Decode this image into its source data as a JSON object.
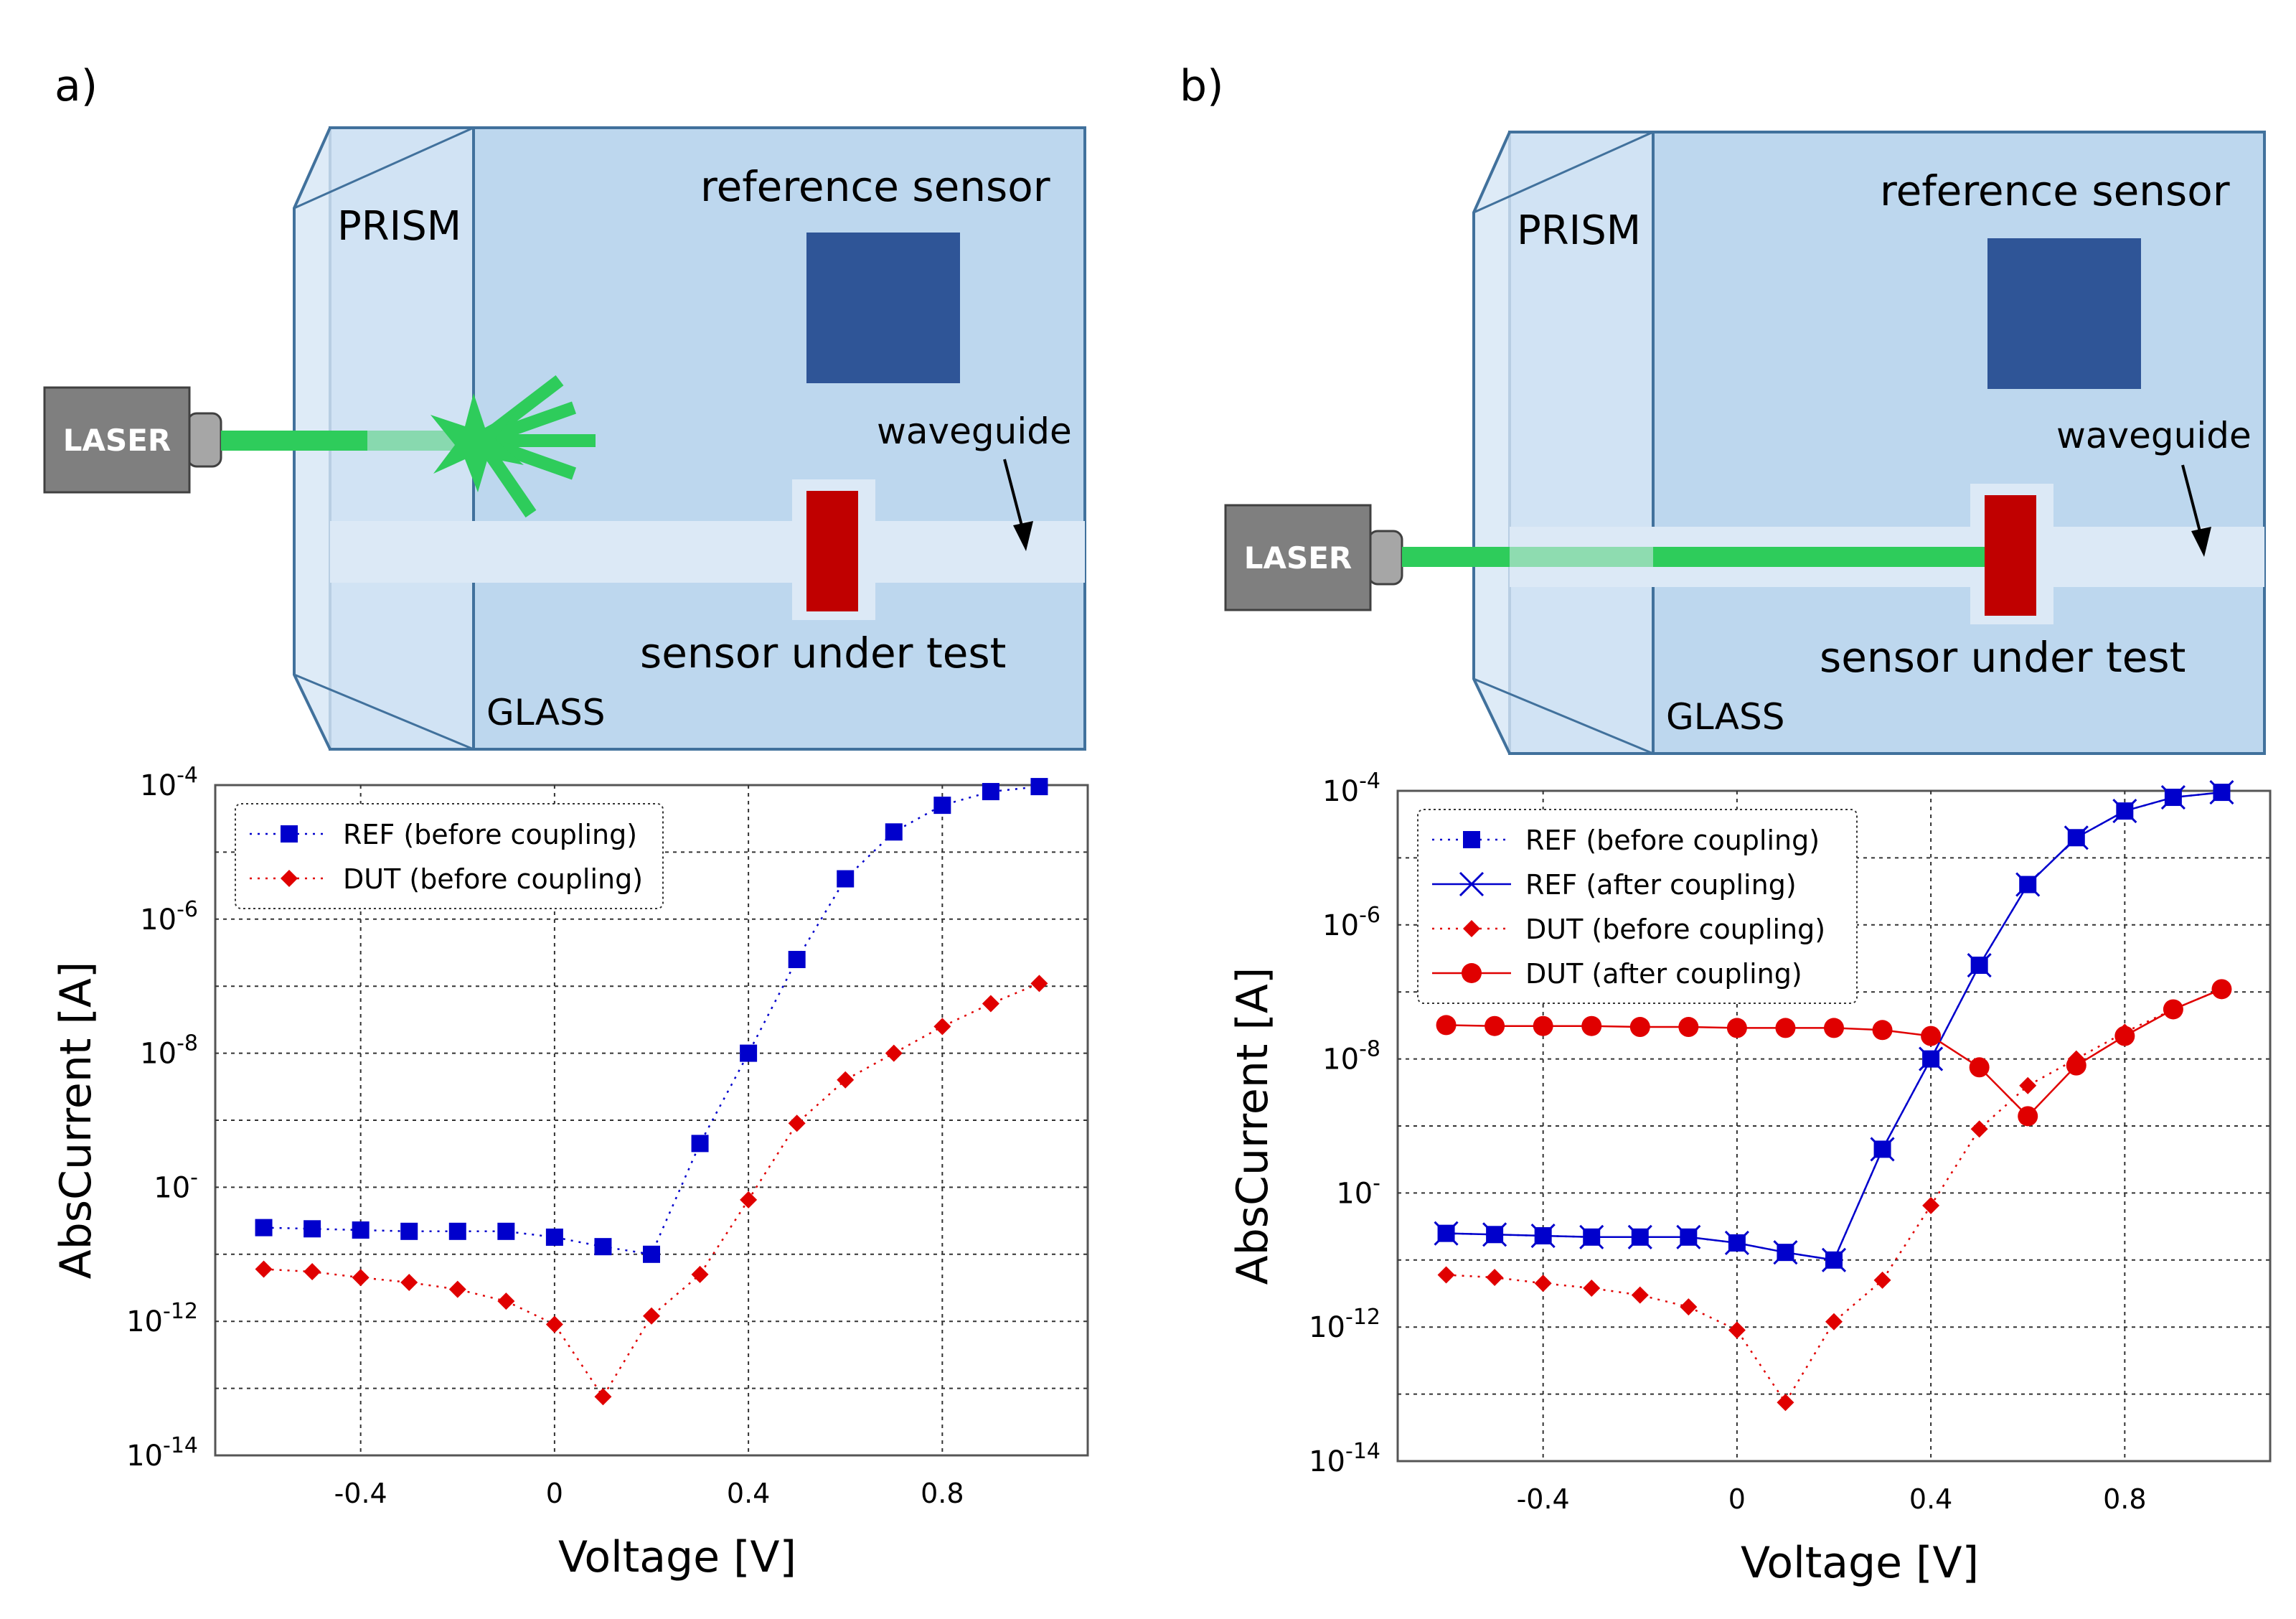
{
  "panel_a": {
    "label": "a)",
    "diagram": {
      "laser": "LASER",
      "prism": "PRISM",
      "glass": "GLASS",
      "reference_sensor": "reference sensor",
      "waveguide": "waveguide",
      "sensor_under_test": "sensor under test"
    }
  },
  "panel_b": {
    "label": "b)",
    "diagram": {
      "laser": "LASER",
      "prism": "PRISM",
      "glass": "GLASS",
      "reference_sensor": "reference sensor",
      "waveguide": "waveguide",
      "sensor_under_test": "sensor under test"
    }
  },
  "colors": {
    "glass": "#bdd7ee",
    "glass_border": "#41719c",
    "prism": "#d6e6f5",
    "waveguide": "#dce9f6",
    "reference_sensor": "#2f5597",
    "sensor_under_test": "#c00000",
    "laser_body": "#7f7f7f",
    "beam": "#2ecc5b",
    "ref_series": "#0000cc",
    "dut_series": "#e00000"
  },
  "chart_data": [
    {
      "type": "scatter",
      "panel": "a",
      "xlabel": "Voltage [V]",
      "ylabel": "AbsCurrent [A]",
      "xlim": [
        -0.7,
        1.1
      ],
      "ylim": [
        1e-14,
        0.0001
      ],
      "yscale": "log",
      "grid": true,
      "legend_position": "top-left",
      "x_ticks": [
        -0.4,
        0,
        0.4,
        0.8
      ],
      "x_tick_labels": [
        "-0.4",
        "0",
        "0.4",
        "0.8"
      ],
      "y_ticks": [
        1e-14,
        1e-12,
        1e-10,
        1e-08,
        1e-06,
        0.0001
      ],
      "y_tick_labels": [
        "10-14",
        "10-12",
        "10-10",
        "10-8",
        "10-6",
        "10-4"
      ],
      "series": [
        {
          "name": "REF (before coupling)",
          "marker": "square",
          "line": "dotted",
          "color": "#0000cc",
          "x": [
            -0.6,
            -0.5,
            -0.4,
            -0.3,
            -0.2,
            -0.1,
            0.0,
            0.1,
            0.2,
            0.3,
            0.4,
            0.5,
            0.6,
            0.7,
            0.8,
            0.9,
            1.0
          ],
          "y": [
            2.5e-11,
            2.4e-11,
            2.3e-11,
            2.2e-11,
            2.2e-11,
            2.2e-11,
            1.8e-11,
            1.3e-11,
            1e-11,
            4.5e-10,
            1e-08,
            2.5e-07,
            4e-06,
            2e-05,
            5e-05,
            8e-05,
            9.5e-05
          ]
        },
        {
          "name": "DUT (before coupling)",
          "marker": "diamond",
          "line": "dotted",
          "color": "#e00000",
          "x": [
            -0.6,
            -0.5,
            -0.4,
            -0.3,
            -0.2,
            -0.1,
            0.0,
            0.1,
            0.2,
            0.3,
            0.4,
            0.5,
            0.6,
            0.7,
            0.8,
            0.9,
            1.0
          ],
          "y": [
            6e-12,
            5.5e-12,
            4.5e-12,
            3.8e-12,
            3e-12,
            2e-12,
            9e-13,
            7.5e-14,
            1.2e-12,
            5e-12,
            6.5e-11,
            9e-10,
            4e-09,
            1e-08,
            2.5e-08,
            5.5e-08,
            1.1e-07
          ]
        }
      ]
    },
    {
      "type": "line",
      "panel": "b",
      "xlabel": "Voltage [V]",
      "ylabel": "AbsCurrent [A]",
      "xlim": [
        -0.7,
        1.1
      ],
      "ylim": [
        1e-14,
        0.0001
      ],
      "yscale": "log",
      "grid": true,
      "legend_position": "top-left",
      "x_ticks": [
        -0.4,
        0,
        0.4,
        0.8
      ],
      "x_tick_labels": [
        "-0.4",
        "0",
        "0.4",
        "0.8"
      ],
      "y_ticks": [
        1e-14,
        1e-12,
        1e-10,
        1e-08,
        1e-06,
        0.0001
      ],
      "y_tick_labels": [
        "10-14",
        "10-12",
        "10-10",
        "10-8",
        "10-6",
        "10-4"
      ],
      "series": [
        {
          "name": "REF (before coupling)",
          "marker": "square",
          "line": "dotted",
          "color": "#0000cc",
          "x": [
            -0.6,
            -0.5,
            -0.4,
            -0.3,
            -0.2,
            -0.1,
            0.0,
            0.1,
            0.2,
            0.3,
            0.4,
            0.5,
            0.6,
            0.7,
            0.8,
            0.9,
            1.0
          ],
          "y": [
            2.5e-11,
            2.4e-11,
            2.3e-11,
            2.2e-11,
            2.2e-11,
            2.2e-11,
            1.8e-11,
            1.3e-11,
            1e-11,
            4.5e-10,
            1e-08,
            2.5e-07,
            4e-06,
            2e-05,
            5e-05,
            8e-05,
            9.5e-05
          ]
        },
        {
          "name": "REF (after coupling)",
          "marker": "x",
          "line": "solid",
          "color": "#0000cc",
          "x": [
            -0.6,
            -0.5,
            -0.4,
            -0.3,
            -0.2,
            -0.1,
            0.0,
            0.1,
            0.2,
            0.3,
            0.4,
            0.5,
            0.6,
            0.7,
            0.8,
            0.9,
            1.0
          ],
          "y": [
            2.5e-11,
            2.4e-11,
            2.3e-11,
            2.2e-11,
            2.2e-11,
            2.2e-11,
            1.8e-11,
            1.3e-11,
            1e-11,
            4.5e-10,
            1e-08,
            2.5e-07,
            4e-06,
            2e-05,
            5e-05,
            8e-05,
            9.5e-05
          ]
        },
        {
          "name": "DUT (before coupling)",
          "marker": "diamond",
          "line": "dotted",
          "color": "#e00000",
          "x": [
            -0.6,
            -0.5,
            -0.4,
            -0.3,
            -0.2,
            -0.1,
            0.0,
            0.1,
            0.2,
            0.3,
            0.4,
            0.5,
            0.6,
            0.7,
            0.8,
            0.9,
            1.0
          ],
          "y": [
            6e-12,
            5.5e-12,
            4.5e-12,
            3.8e-12,
            3e-12,
            2e-12,
            9e-13,
            7.5e-14,
            1.2e-12,
            5e-12,
            6.5e-11,
            9e-10,
            4e-09,
            1e-08,
            2.5e-08,
            5.5e-08,
            1.1e-07
          ]
        },
        {
          "name": "DUT (after coupling)",
          "marker": "circle",
          "line": "solid",
          "color": "#e00000",
          "x": [
            -0.6,
            -0.5,
            -0.4,
            -0.3,
            -0.2,
            -0.1,
            0.0,
            0.1,
            0.2,
            0.3,
            0.4,
            0.5,
            0.6,
            0.7,
            0.8,
            0.9,
            1.0
          ],
          "y": [
            3.2e-08,
            3.1e-08,
            3.1e-08,
            3.1e-08,
            3e-08,
            3e-08,
            2.9e-08,
            2.9e-08,
            2.9e-08,
            2.7e-08,
            2.2e-08,
            7.5e-09,
            1.4e-09,
            8e-09,
            2.2e-08,
            5.5e-08,
            1.1e-07
          ]
        }
      ]
    }
  ]
}
